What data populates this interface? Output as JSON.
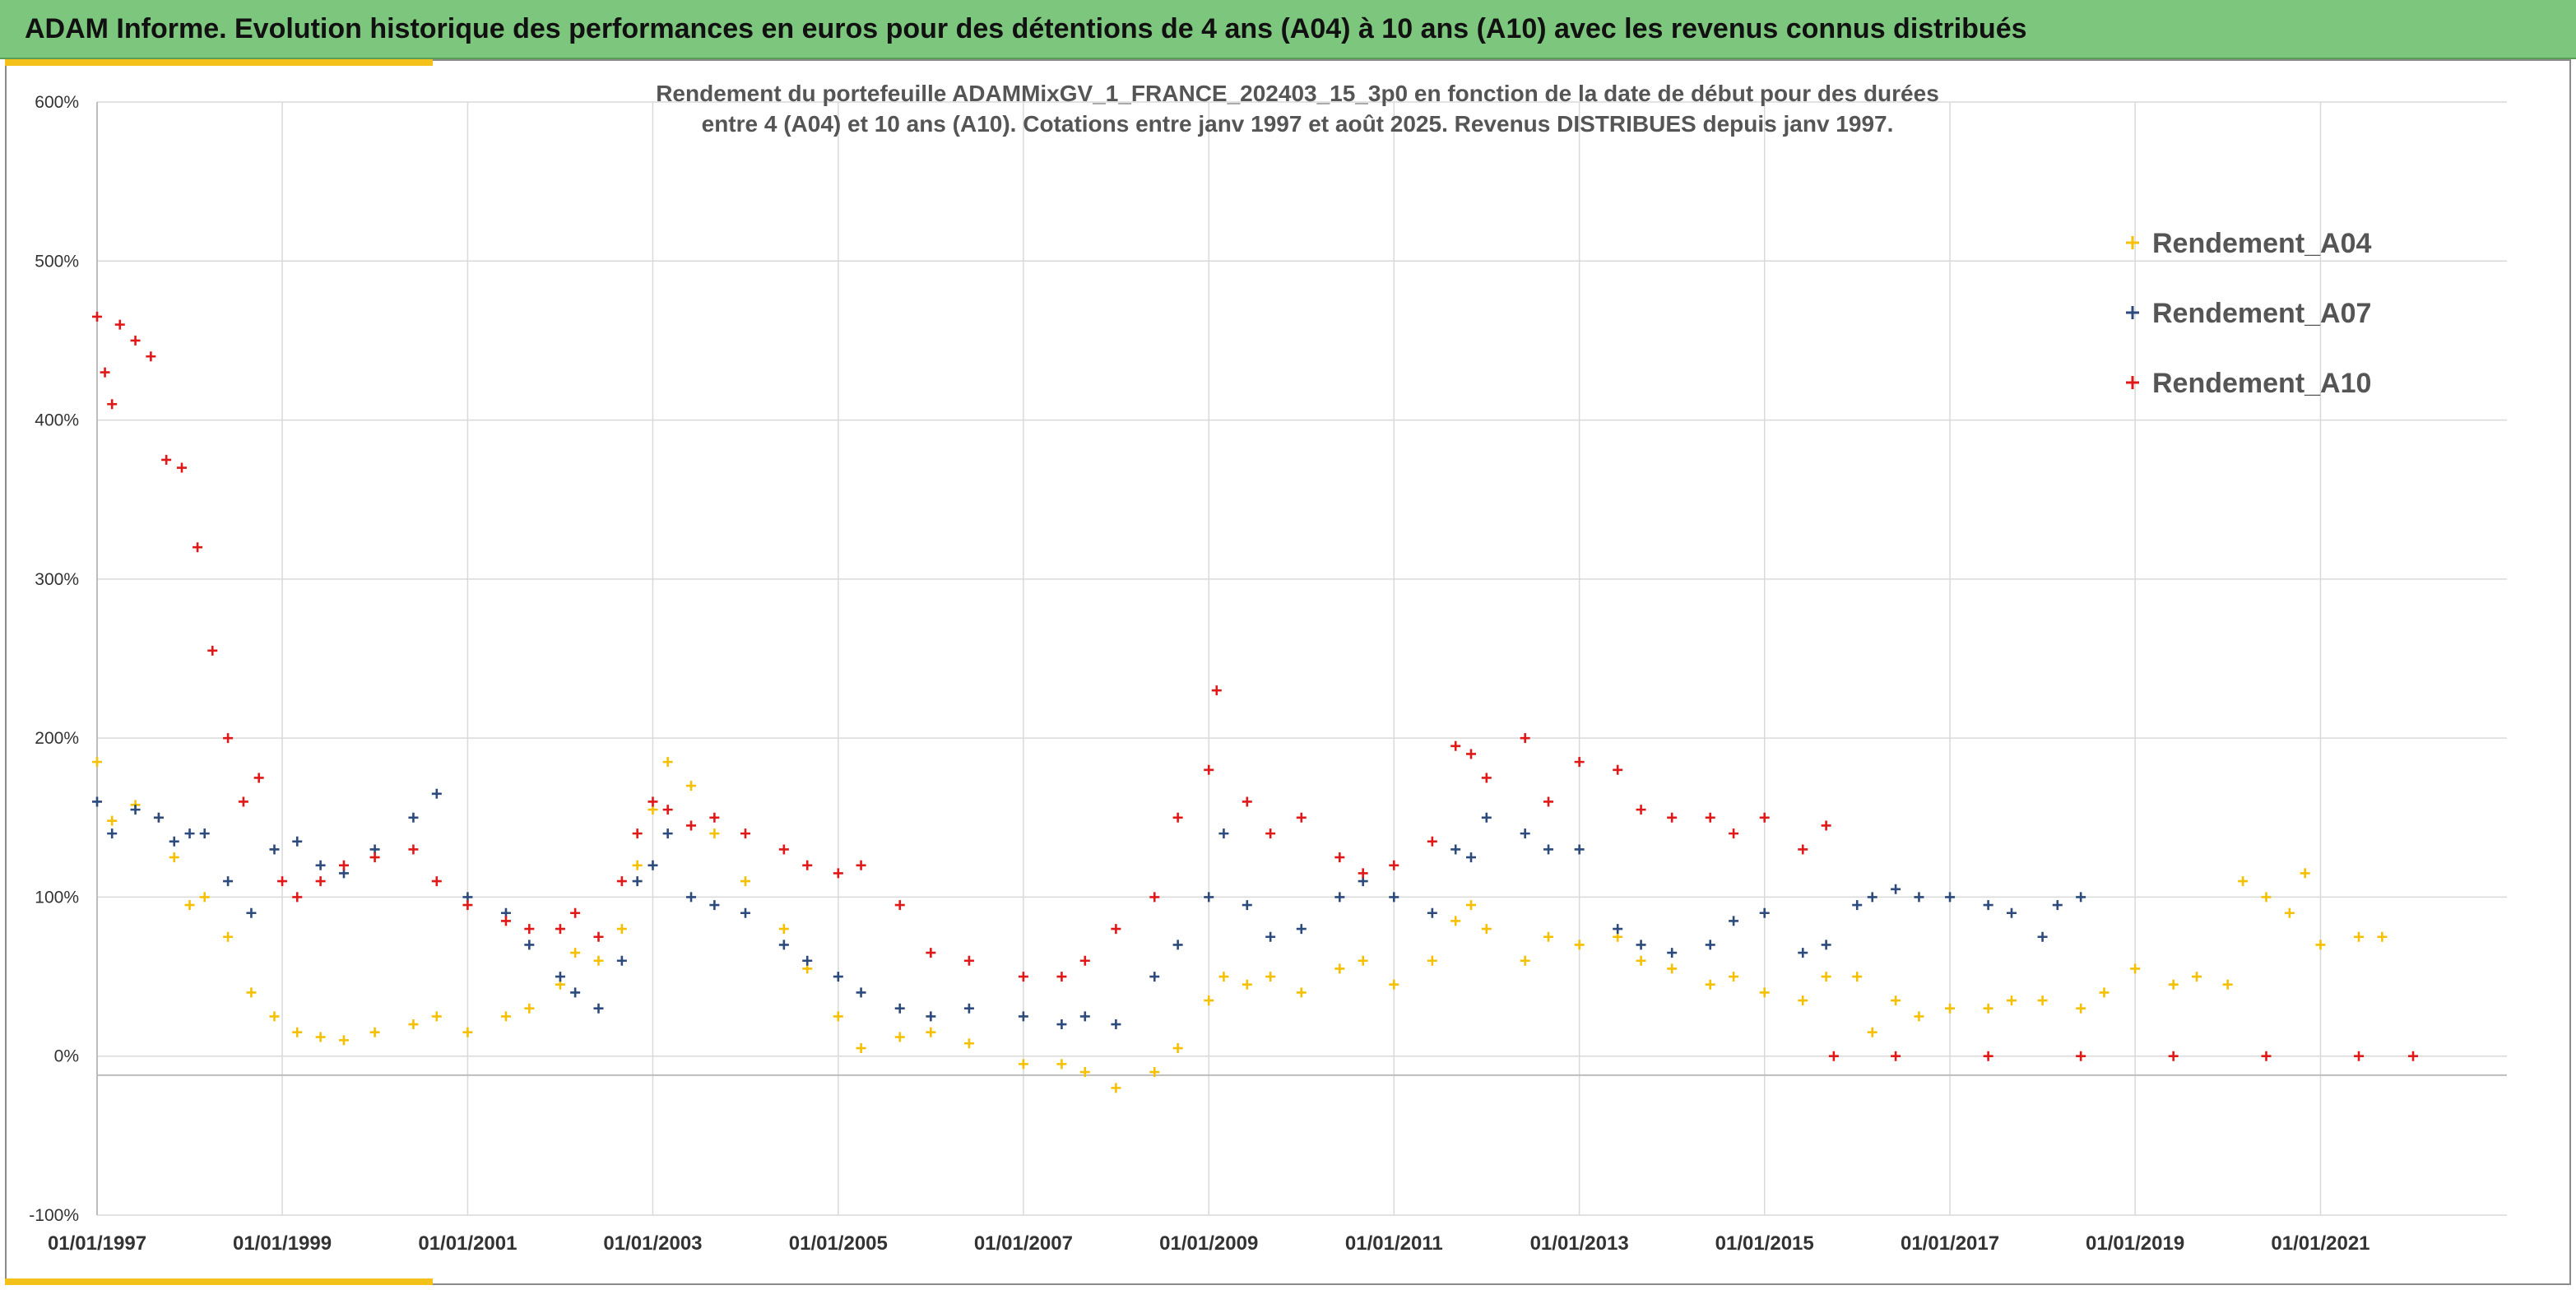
{
  "banner": {
    "title": "ADAM Informe. Evolution historique des performances en euros pour des détentions de 4 ans (A04) à 10 ans (A10) avec les revenus connus distribués"
  },
  "colors": {
    "banner_bg": "#7dc67d",
    "accent": "#f3c11a",
    "A04": "#f5c000",
    "A07": "#2c4a7c",
    "A10": "#e01818",
    "grid": "#d9d9d9"
  },
  "chart_data": {
    "type": "scatter",
    "title_lines": [
      "Rendement du portefeuille ADAMMixGV_1_FRANCE_202403_15_3p0  en fonction de la date de début pour des durées",
      "entre 4 (A04) et 10 ans (A10). Cotations entre janv 1997 et août 2025. Revenus DISTRIBUES depuis janv 1997."
    ],
    "xlabel": "",
    "ylabel": "",
    "x_range": [
      "1997-01-01",
      "2022-01-01"
    ],
    "ylim": [
      -100,
      600
    ],
    "y_ticks": [
      -100,
      0,
      100,
      200,
      300,
      400,
      500,
      600
    ],
    "y_tick_labels": [
      "-100%",
      "0%",
      "100%",
      "200%",
      "300%",
      "400%",
      "500%",
      "600%"
    ],
    "x_ticks": [
      "1997-01-01",
      "1999-01-01",
      "2001-01-01",
      "2003-01-01",
      "2005-01-01",
      "2007-01-01",
      "2009-01-01",
      "2011-01-01",
      "2013-01-01",
      "2015-01-01",
      "2017-01-01",
      "2019-01-01",
      "2021-01-01"
    ],
    "x_tick_labels": [
      "01/01/1997",
      "01/01/1999",
      "01/01/2001",
      "01/01/2003",
      "01/01/2005",
      "01/01/2007",
      "01/01/2009",
      "01/01/2011",
      "01/01/2013",
      "01/01/2015",
      "01/01/2017",
      "01/01/2019",
      "01/01/2021"
    ],
    "grid": true,
    "legend_position": "top-right",
    "marker": "+",
    "series": [
      {
        "name": "Rendement_A04",
        "color": "#f5c000",
        "points": [
          [
            "1997-01-01",
            185
          ],
          [
            "1997-03-01",
            148
          ],
          [
            "1997-06-01",
            158
          ],
          [
            "1997-09-01",
            150
          ],
          [
            "1997-11-01",
            125
          ],
          [
            "1998-01-01",
            95
          ],
          [
            "1998-03-01",
            100
          ],
          [
            "1998-06-01",
            75
          ],
          [
            "1998-09-01",
            40
          ],
          [
            "1998-12-01",
            25
          ],
          [
            "1999-03-01",
            15
          ],
          [
            "1999-06-01",
            12
          ],
          [
            "1999-09-01",
            10
          ],
          [
            "2000-01-01",
            15
          ],
          [
            "2000-06-01",
            20
          ],
          [
            "2000-09-01",
            25
          ],
          [
            "2001-01-01",
            15
          ],
          [
            "2001-06-01",
            25
          ],
          [
            "2001-09-01",
            30
          ],
          [
            "2002-01-01",
            45
          ],
          [
            "2002-03-01",
            65
          ],
          [
            "2002-06-01",
            60
          ],
          [
            "2002-09-01",
            80
          ],
          [
            "2002-11-01",
            120
          ],
          [
            "2003-01-01",
            155
          ],
          [
            "2003-03-01",
            185
          ],
          [
            "2003-06-01",
            170
          ],
          [
            "2003-09-01",
            140
          ],
          [
            "2004-01-01",
            110
          ],
          [
            "2004-06-01",
            80
          ],
          [
            "2004-09-01",
            55
          ],
          [
            "2005-01-01",
            25
          ],
          [
            "2005-04-01",
            5
          ],
          [
            "2005-09-01",
            12
          ],
          [
            "2006-01-01",
            15
          ],
          [
            "2006-06-01",
            8
          ],
          [
            "2007-01-01",
            -5
          ],
          [
            "2007-06-01",
            -5
          ],
          [
            "2007-09-01",
            -10
          ],
          [
            "2008-01-01",
            -20
          ],
          [
            "2008-06-01",
            -10
          ],
          [
            "2008-09-01",
            5
          ],
          [
            "2009-01-01",
            35
          ],
          [
            "2009-03-01",
            50
          ],
          [
            "2009-06-01",
            45
          ],
          [
            "2009-09-01",
            50
          ],
          [
            "2010-01-01",
            40
          ],
          [
            "2010-06-01",
            55
          ],
          [
            "2010-09-01",
            60
          ],
          [
            "2011-01-01",
            45
          ],
          [
            "2011-06-01",
            60
          ],
          [
            "2011-09-01",
            85
          ],
          [
            "2011-11-01",
            95
          ],
          [
            "2012-01-01",
            80
          ],
          [
            "2012-06-01",
            60
          ],
          [
            "2012-09-01",
            75
          ],
          [
            "2013-01-01",
            70
          ],
          [
            "2013-06-01",
            75
          ],
          [
            "2013-09-01",
            60
          ],
          [
            "2014-01-01",
            55
          ],
          [
            "2014-06-01",
            45
          ],
          [
            "2014-09-01",
            50
          ],
          [
            "2015-01-01",
            40
          ],
          [
            "2015-06-01",
            35
          ],
          [
            "2015-09-01",
            50
          ],
          [
            "2016-01-01",
            50
          ],
          [
            "2016-03-01",
            15
          ],
          [
            "2016-06-01",
            35
          ],
          [
            "2016-09-01",
            25
          ],
          [
            "2017-01-01",
            30
          ],
          [
            "2017-06-01",
            30
          ],
          [
            "2017-09-01",
            35
          ],
          [
            "2018-01-01",
            35
          ],
          [
            "2018-06-01",
            30
          ],
          [
            "2018-09-01",
            40
          ],
          [
            "2019-01-01",
            55
          ],
          [
            "2019-06-01",
            45
          ],
          [
            "2019-09-01",
            50
          ],
          [
            "2020-01-01",
            45
          ],
          [
            "2020-03-01",
            110
          ],
          [
            "2020-06-01",
            100
          ],
          [
            "2020-09-01",
            90
          ],
          [
            "2020-11-01",
            115
          ],
          [
            "2021-01-01",
            70
          ],
          [
            "2021-06-01",
            75
          ],
          [
            "2021-09-01",
            75
          ]
        ]
      },
      {
        "name": "Rendement_A07",
        "color": "#2c4a7c",
        "points": [
          [
            "1997-01-01",
            160
          ],
          [
            "1997-03-01",
            140
          ],
          [
            "1997-06-01",
            155
          ],
          [
            "1997-09-01",
            150
          ],
          [
            "1997-11-01",
            135
          ],
          [
            "1998-01-01",
            140
          ],
          [
            "1998-03-01",
            140
          ],
          [
            "1998-06-01",
            110
          ],
          [
            "1998-09-01",
            90
          ],
          [
            "1998-12-01",
            130
          ],
          [
            "1999-03-01",
            135
          ],
          [
            "1999-06-01",
            120
          ],
          [
            "1999-09-01",
            115
          ],
          [
            "2000-01-01",
            130
          ],
          [
            "2000-06-01",
            150
          ],
          [
            "2000-09-01",
            165
          ],
          [
            "2001-01-01",
            100
          ],
          [
            "2001-06-01",
            90
          ],
          [
            "2001-09-01",
            70
          ],
          [
            "2002-01-01",
            50
          ],
          [
            "2002-03-01",
            40
          ],
          [
            "2002-06-01",
            30
          ],
          [
            "2002-09-01",
            60
          ],
          [
            "2002-11-01",
            110
          ],
          [
            "2003-01-01",
            120
          ],
          [
            "2003-03-01",
            140
          ],
          [
            "2003-06-01",
            100
          ],
          [
            "2003-09-01",
            95
          ],
          [
            "2004-01-01",
            90
          ],
          [
            "2004-06-01",
            70
          ],
          [
            "2004-09-01",
            60
          ],
          [
            "2005-01-01",
            50
          ],
          [
            "2005-04-01",
            40
          ],
          [
            "2005-09-01",
            30
          ],
          [
            "2006-01-01",
            25
          ],
          [
            "2006-06-01",
            30
          ],
          [
            "2007-01-01",
            25
          ],
          [
            "2007-06-01",
            20
          ],
          [
            "2007-09-01",
            25
          ],
          [
            "2008-01-01",
            20
          ],
          [
            "2008-06-01",
            50
          ],
          [
            "2008-09-01",
            70
          ],
          [
            "2009-01-01",
            100
          ],
          [
            "2009-03-01",
            140
          ],
          [
            "2009-06-01",
            95
          ],
          [
            "2009-09-01",
            75
          ],
          [
            "2010-01-01",
            80
          ],
          [
            "2010-06-01",
            100
          ],
          [
            "2010-09-01",
            110
          ],
          [
            "2011-01-01",
            100
          ],
          [
            "2011-06-01",
            90
          ],
          [
            "2011-09-01",
            130
          ],
          [
            "2011-11-01",
            125
          ],
          [
            "2012-01-01",
            150
          ],
          [
            "2012-06-01",
            140
          ],
          [
            "2012-09-01",
            130
          ],
          [
            "2013-01-01",
            130
          ],
          [
            "2013-06-01",
            80
          ],
          [
            "2013-09-01",
            70
          ],
          [
            "2014-01-01",
            65
          ],
          [
            "2014-06-01",
            70
          ],
          [
            "2014-09-01",
            85
          ],
          [
            "2015-01-01",
            90
          ],
          [
            "2015-06-01",
            65
          ],
          [
            "2015-09-01",
            70
          ],
          [
            "2016-01-01",
            95
          ],
          [
            "2016-03-01",
            100
          ],
          [
            "2016-06-01",
            105
          ],
          [
            "2016-09-01",
            100
          ],
          [
            "2017-01-01",
            100
          ],
          [
            "2017-06-01",
            95
          ],
          [
            "2017-09-01",
            90
          ],
          [
            "2018-01-01",
            75
          ],
          [
            "2018-03-01",
            95
          ],
          [
            "2018-06-01",
            100
          ]
        ]
      },
      {
        "name": "Rendement_A10",
        "color": "#e01818",
        "points": [
          [
            "1997-01-01",
            465
          ],
          [
            "1997-02-01",
            430
          ],
          [
            "1997-03-01",
            410
          ],
          [
            "1997-04-01",
            460
          ],
          [
            "1997-06-01",
            450
          ],
          [
            "1997-08-01",
            440
          ],
          [
            "1997-10-01",
            375
          ],
          [
            "1997-12-01",
            370
          ],
          [
            "1998-02-01",
            320
          ],
          [
            "1998-04-01",
            255
          ],
          [
            "1998-06-01",
            200
          ],
          [
            "1998-08-01",
            160
          ],
          [
            "1998-10-01",
            175
          ],
          [
            "1999-01-01",
            110
          ],
          [
            "1999-03-01",
            100
          ],
          [
            "1999-06-01",
            110
          ],
          [
            "1999-09-01",
            120
          ],
          [
            "2000-01-01",
            125
          ],
          [
            "2000-06-01",
            130
          ],
          [
            "2000-09-01",
            110
          ],
          [
            "2001-01-01",
            95
          ],
          [
            "2001-06-01",
            85
          ],
          [
            "2001-09-01",
            80
          ],
          [
            "2002-01-01",
            80
          ],
          [
            "2002-03-01",
            90
          ],
          [
            "2002-06-01",
            75
          ],
          [
            "2002-09-01",
            110
          ],
          [
            "2002-11-01",
            140
          ],
          [
            "2003-01-01",
            160
          ],
          [
            "2003-03-01",
            155
          ],
          [
            "2003-06-01",
            145
          ],
          [
            "2003-09-01",
            150
          ],
          [
            "2004-01-01",
            140
          ],
          [
            "2004-06-01",
            130
          ],
          [
            "2004-09-01",
            120
          ],
          [
            "2005-01-01",
            115
          ],
          [
            "2005-04-01",
            120
          ],
          [
            "2005-09-01",
            95
          ],
          [
            "2006-01-01",
            65
          ],
          [
            "2006-06-01",
            60
          ],
          [
            "2007-01-01",
            50
          ],
          [
            "2007-06-01",
            50
          ],
          [
            "2007-09-01",
            60
          ],
          [
            "2008-01-01",
            80
          ],
          [
            "2008-06-01",
            100
          ],
          [
            "2008-09-01",
            150
          ],
          [
            "2009-01-01",
            180
          ],
          [
            "2009-02-01",
            230
          ],
          [
            "2009-06-01",
            160
          ],
          [
            "2009-09-01",
            140
          ],
          [
            "2010-01-01",
            150
          ],
          [
            "2010-06-01",
            125
          ],
          [
            "2010-09-01",
            115
          ],
          [
            "2011-01-01",
            120
          ],
          [
            "2011-06-01",
            135
          ],
          [
            "2011-09-01",
            195
          ],
          [
            "2011-11-01",
            190
          ],
          [
            "2012-01-01",
            175
          ],
          [
            "2012-06-01",
            200
          ],
          [
            "2012-09-01",
            160
          ],
          [
            "2013-01-01",
            185
          ],
          [
            "2013-06-01",
            180
          ],
          [
            "2013-09-01",
            155
          ],
          [
            "2014-01-01",
            150
          ],
          [
            "2014-06-01",
            150
          ],
          [
            "2014-09-01",
            140
          ],
          [
            "2015-01-01",
            150
          ],
          [
            "2015-06-01",
            130
          ],
          [
            "2015-09-01",
            145
          ],
          [
            "2015-10-01",
            0
          ],
          [
            "2016-06-01",
            0
          ],
          [
            "2017-06-01",
            0
          ],
          [
            "2018-06-01",
            0
          ],
          [
            "2019-06-01",
            0
          ],
          [
            "2020-06-01",
            0
          ],
          [
            "2021-06-01",
            0
          ],
          [
            "2022-01-01",
            0
          ]
        ]
      }
    ]
  }
}
